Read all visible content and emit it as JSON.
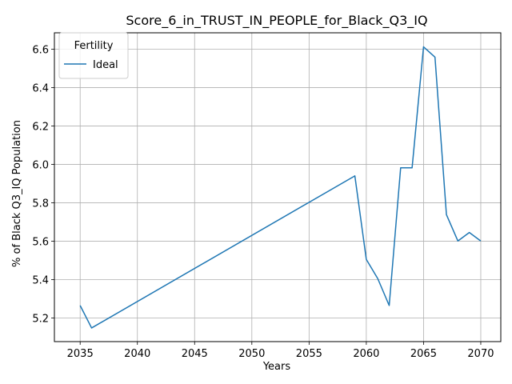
{
  "chart_data": {
    "type": "line",
    "title": "Score_6_in_TRUST_IN_PEOPLE_for_Black_Q3_IQ",
    "xlabel": "Years",
    "ylabel": "% of Black Q3_IQ Population",
    "xlim": [
      2032.75,
      2071.75
    ],
    "ylim": [
      5.077,
      6.685
    ],
    "xticks": [
      2035,
      2040,
      2045,
      2050,
      2055,
      2060,
      2065,
      2070
    ],
    "yticks": [
      5.2,
      5.4,
      5.6,
      5.8,
      6.0,
      6.2,
      6.4,
      6.6
    ],
    "grid": true,
    "legend": {
      "title": "Fertility",
      "position": "top-left"
    },
    "series": [
      {
        "name": "Ideal",
        "color": "#1f77b4",
        "x": [
          2035,
          2036,
          2059,
          2060,
          2061,
          2062,
          2063,
          2064,
          2065,
          2066,
          2067,
          2068,
          2069,
          2070
        ],
        "y": [
          5.265,
          5.148,
          5.94,
          5.505,
          5.405,
          5.265,
          5.982,
          5.982,
          6.612,
          6.558,
          5.738,
          5.601,
          5.645,
          5.601
        ]
      }
    ]
  }
}
